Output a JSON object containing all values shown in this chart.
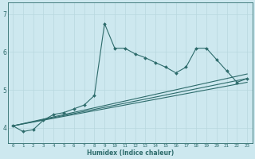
{
  "xlabel": "Humidex (Indice chaleur)",
  "ylabel": "",
  "bg_color": "#cde8ef",
  "line_color": "#2d6b6b",
  "grid_color": "#b8d8de",
  "xlim": [
    -0.5,
    23.5
  ],
  "ylim": [
    3.6,
    7.3
  ],
  "yticks": [
    4,
    5,
    6,
    7
  ],
  "xticks": [
    0,
    1,
    2,
    3,
    4,
    5,
    6,
    7,
    8,
    9,
    10,
    11,
    12,
    13,
    14,
    15,
    16,
    17,
    18,
    19,
    20,
    21,
    22,
    23
  ],
  "series": [
    {
      "x": [
        0,
        1,
        2,
        3,
        4,
        5,
        6,
        7,
        8,
        9,
        10,
        11,
        12,
        13,
        14,
        15,
        16,
        17,
        18,
        19,
        20,
        21,
        22,
        23
      ],
      "y": [
        4.05,
        3.9,
        3.95,
        4.2,
        4.35,
        4.4,
        4.5,
        4.6,
        4.85,
        6.75,
        6.1,
        6.1,
        5.95,
        5.85,
        5.72,
        5.6,
        5.45,
        5.6,
        6.1,
        6.1,
        5.8,
        5.5,
        5.2,
        5.3
      ],
      "marker": "D",
      "markersize": 2.0,
      "linestyle": "-",
      "linewidth": 0.8
    },
    {
      "x": [
        0,
        23
      ],
      "y": [
        4.05,
        5.3
      ],
      "marker": null,
      "markersize": 0,
      "linestyle": "-",
      "linewidth": 0.8
    },
    {
      "x": [
        0,
        23
      ],
      "y": [
        4.05,
        5.2
      ],
      "marker": null,
      "markersize": 0,
      "linestyle": "-",
      "linewidth": 0.8
    },
    {
      "x": [
        0,
        23
      ],
      "y": [
        4.05,
        5.42
      ],
      "marker": null,
      "markersize": 0,
      "linestyle": "-",
      "linewidth": 0.8
    }
  ]
}
